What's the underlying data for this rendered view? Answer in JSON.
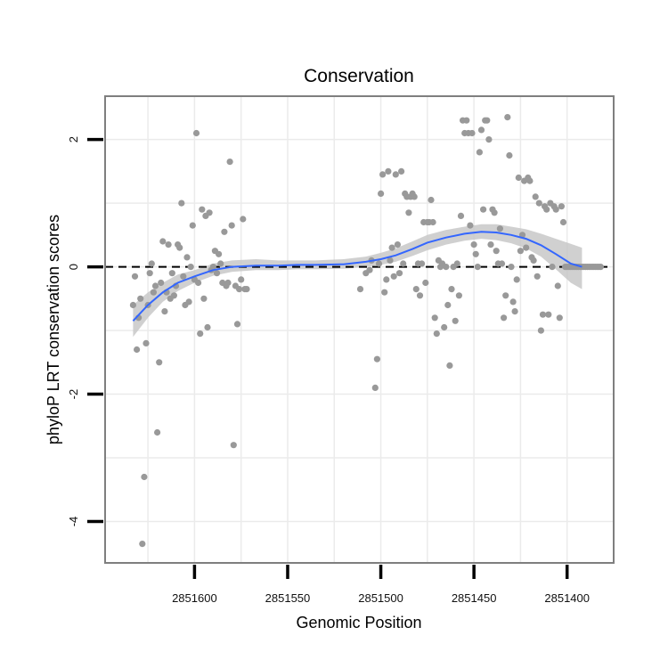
{
  "chart_data": {
    "type": "scatter",
    "title": "Conservation",
    "xlabel": "Genomic Position",
    "ylabel": "phyloP LRT conservation scores",
    "x_reversed": true,
    "xlim": [
      2851375,
      2851648
    ],
    "ylim": [
      -4.65,
      2.68
    ],
    "x_ticks": [
      2851600,
      2851550,
      2851500,
      2851450,
      2851400
    ],
    "x_tick_labels": [
      "2851600",
      "2851550",
      "2851500",
      "2851450",
      "2851400"
    ],
    "y_ticks": [
      2,
      0,
      -2,
      -4
    ],
    "y_tick_labels": [
      "2",
      "0",
      "-2",
      "-4"
    ],
    "reference_line": {
      "y": 0,
      "style": "dashed"
    },
    "grid": true,
    "colors": {
      "points": "#999999",
      "smooth_line": "#3366ff",
      "confidence_band": "#c8c8c8",
      "grid": "#ebebeb",
      "panel_border": "#7f7f7f",
      "reference_line": "#000000"
    },
    "series": [
      {
        "name": "phyloP scores",
        "points": [
          [
            2851633,
            -0.6
          ],
          [
            2851632,
            -0.15
          ],
          [
            2851631,
            -1.3
          ],
          [
            2851630,
            -0.8
          ],
          [
            2851629,
            -0.5
          ],
          [
            2851628,
            -4.35
          ],
          [
            2851627,
            -3.3
          ],
          [
            2851626,
            -1.2
          ],
          [
            2851625,
            -0.6
          ],
          [
            2851624,
            -0.1
          ],
          [
            2851623,
            0.05
          ],
          [
            2851622,
            -0.4
          ],
          [
            2851621,
            -0.3
          ],
          [
            2851620,
            -2.6
          ],
          [
            2851619,
            -1.5
          ],
          [
            2851618,
            -0.25
          ],
          [
            2851617,
            0.4
          ],
          [
            2851616,
            -0.7
          ],
          [
            2851615,
            -0.4
          ],
          [
            2851614,
            0.35
          ],
          [
            2851613,
            -0.5
          ],
          [
            2851612,
            -0.1
          ],
          [
            2851611,
            -0.45
          ],
          [
            2851610,
            -0.3
          ],
          [
            2851609,
            0.35
          ],
          [
            2851608,
            0.3
          ],
          [
            2851607,
            1.0
          ],
          [
            2851606,
            -0.15
          ],
          [
            2851605,
            -0.6
          ],
          [
            2851604,
            0.15
          ],
          [
            2851603,
            -0.55
          ],
          [
            2851602,
            0.0
          ],
          [
            2851601,
            0.65
          ],
          [
            2851600,
            -0.2
          ],
          [
            2851599,
            2.1
          ],
          [
            2851598,
            -0.25
          ],
          [
            2851597,
            -1.05
          ],
          [
            2851596,
            0.9
          ],
          [
            2851595,
            -0.5
          ],
          [
            2851594,
            0.8
          ],
          [
            2851593,
            -0.95
          ],
          [
            2851592,
            0.85
          ],
          [
            2851591,
            -0.05
          ],
          [
            2851590,
            0.0
          ],
          [
            2851589,
            0.25
          ],
          [
            2851588,
            -0.1
          ],
          [
            2851587,
            0.2
          ],
          [
            2851586,
            0.05
          ],
          [
            2851585,
            -0.25
          ],
          [
            2851584,
            0.55
          ],
          [
            2851583,
            -0.3
          ],
          [
            2851582,
            -0.25
          ],
          [
            2851581,
            1.65
          ],
          [
            2851580,
            0.65
          ],
          [
            2851579,
            -2.8
          ],
          [
            2851578,
            -0.3
          ],
          [
            2851577,
            -0.9
          ],
          [
            2851576,
            -0.35
          ],
          [
            2851575,
            -0.2
          ],
          [
            2851574,
            0.75
          ],
          [
            2851573,
            -0.35
          ],
          [
            2851572,
            -0.35
          ],
          [
            2851511,
            -0.35
          ],
          [
            2851508,
            -0.1
          ],
          [
            2851506,
            -0.05
          ],
          [
            2851505,
            0.1
          ],
          [
            2851503,
            -1.9
          ],
          [
            2851502,
            -1.45
          ],
          [
            2851501,
            0.05
          ],
          [
            2851500,
            1.15
          ],
          [
            2851499,
            1.45
          ],
          [
            2851498,
            -0.4
          ],
          [
            2851497,
            -0.2
          ],
          [
            2851496,
            1.5
          ],
          [
            2851495,
            0.1
          ],
          [
            2851494,
            0.3
          ],
          [
            2851493,
            -0.15
          ],
          [
            2851492,
            1.45
          ],
          [
            2851491,
            0.35
          ],
          [
            2851490,
            -0.1
          ],
          [
            2851489,
            1.5
          ],
          [
            2851488,
            0.05
          ],
          [
            2851487,
            1.15
          ],
          [
            2851486,
            1.1
          ],
          [
            2851485,
            0.85
          ],
          [
            2851484,
            1.1
          ],
          [
            2851483,
            1.15
          ],
          [
            2851482,
            1.1
          ],
          [
            2851481,
            -0.35
          ],
          [
            2851480,
            0.05
          ],
          [
            2851479,
            -0.45
          ],
          [
            2851478,
            0.05
          ],
          [
            2851477,
            0.7
          ],
          [
            2851476,
            -0.25
          ],
          [
            2851475,
            0.7
          ],
          [
            2851474,
            0.7
          ],
          [
            2851473,
            1.05
          ],
          [
            2851472,
            0.7
          ],
          [
            2851471,
            -0.8
          ],
          [
            2851470,
            -1.05
          ],
          [
            2851469,
            0.1
          ],
          [
            2851468,
            0.0
          ],
          [
            2851467,
            0.05
          ],
          [
            2851466,
            -0.95
          ],
          [
            2851465,
            0.0
          ],
          [
            2851464,
            -0.6
          ],
          [
            2851463,
            -1.55
          ],
          [
            2851462,
            -0.35
          ],
          [
            2851461,
            0.0
          ],
          [
            2851460,
            -0.85
          ],
          [
            2851459,
            0.05
          ],
          [
            2851458,
            -0.45
          ],
          [
            2851457,
            0.8
          ],
          [
            2851456,
            2.3
          ],
          [
            2851455,
            2.1
          ],
          [
            2851454,
            2.3
          ],
          [
            2851453,
            2.1
          ],
          [
            2851452,
            0.65
          ],
          [
            2851451,
            2.1
          ],
          [
            2851450,
            0.35
          ],
          [
            2851449,
            0.2
          ],
          [
            2851448,
            0.0
          ],
          [
            2851447,
            1.8
          ],
          [
            2851446,
            2.15
          ],
          [
            2851445,
            0.9
          ],
          [
            2851444,
            2.3
          ],
          [
            2851443,
            2.3
          ],
          [
            2851442,
            2.0
          ],
          [
            2851441,
            0.35
          ],
          [
            2851440,
            0.9
          ],
          [
            2851439,
            0.85
          ],
          [
            2851438,
            0.25
          ],
          [
            2851437,
            0.05
          ],
          [
            2851436,
            0.6
          ],
          [
            2851435,
            0.05
          ],
          [
            2851434,
            -0.8
          ],
          [
            2851433,
            -0.45
          ],
          [
            2851432,
            2.35
          ],
          [
            2851431,
            1.75
          ],
          [
            2851430,
            0.0
          ],
          [
            2851429,
            -0.55
          ],
          [
            2851428,
            -0.7
          ],
          [
            2851427,
            -0.2
          ],
          [
            2851426,
            1.4
          ],
          [
            2851425,
            0.25
          ],
          [
            2851424,
            0.5
          ],
          [
            2851423,
            1.35
          ],
          [
            2851422,
            0.3
          ],
          [
            2851421,
            1.4
          ],
          [
            2851420,
            1.35
          ],
          [
            2851419,
            0.15
          ],
          [
            2851418,
            0.1
          ],
          [
            2851417,
            1.1
          ],
          [
            2851416,
            -0.15
          ],
          [
            2851415,
            1.0
          ],
          [
            2851414,
            -1.0
          ],
          [
            2851413,
            -0.75
          ],
          [
            2851412,
            0.95
          ],
          [
            2851411,
            0.9
          ],
          [
            2851410,
            -0.75
          ],
          [
            2851409,
            1.0
          ],
          [
            2851408,
            0.0
          ],
          [
            2851407,
            0.95
          ],
          [
            2851406,
            0.9
          ],
          [
            2851405,
            -0.3
          ],
          [
            2851404,
            -0.8
          ],
          [
            2851403,
            0.95
          ],
          [
            2851402,
            0.7
          ],
          [
            2851401,
            0.0
          ],
          [
            2851400,
            0.0
          ],
          [
            2851399,
            0.0
          ],
          [
            2851398,
            0.0
          ],
          [
            2851397,
            0.0
          ],
          [
            2851396,
            0.0
          ],
          [
            2851395,
            0.0
          ],
          [
            2851394,
            0.0
          ],
          [
            2851393,
            0.0
          ],
          [
            2851392,
            0.0
          ],
          [
            2851391,
            0.0
          ],
          [
            2851390,
            0.0
          ],
          [
            2851389,
            0.0
          ],
          [
            2851388,
            0.0
          ],
          [
            2851387,
            0.0
          ],
          [
            2851386,
            0.0
          ],
          [
            2851385,
            0.0
          ],
          [
            2851384,
            0.0
          ],
          [
            2851383,
            0.0
          ],
          [
            2851382,
            0.0
          ]
        ]
      },
      {
        "name": "loess smooth",
        "type": "line",
        "points": [
          [
            2851633,
            -0.85
          ],
          [
            2851625,
            -0.6
          ],
          [
            2851617,
            -0.4
          ],
          [
            2851609,
            -0.25
          ],
          [
            2851600,
            -0.15
          ],
          [
            2851590,
            -0.05
          ],
          [
            2851580,
            0.0
          ],
          [
            2851567,
            0.02
          ],
          [
            2851555,
            0.02
          ],
          [
            2851545,
            0.03
          ],
          [
            2851535,
            0.03
          ],
          [
            2851520,
            0.04
          ],
          [
            2851508,
            0.08
          ],
          [
            2851500,
            0.12
          ],
          [
            2851492,
            0.18
          ],
          [
            2851483,
            0.28
          ],
          [
            2851475,
            0.38
          ],
          [
            2851465,
            0.46
          ],
          [
            2851455,
            0.52
          ],
          [
            2851446,
            0.55
          ],
          [
            2851438,
            0.54
          ],
          [
            2851430,
            0.5
          ],
          [
            2851422,
            0.44
          ],
          [
            2851414,
            0.34
          ],
          [
            2851406,
            0.2
          ],
          [
            2851398,
            0.05
          ],
          [
            2851392,
            0.0
          ]
        ]
      },
      {
        "name": "95% confidence band",
        "type": "area",
        "points": [
          [
            2851633,
            -1.1,
            -0.6
          ],
          [
            2851625,
            -0.8,
            -0.4
          ],
          [
            2851617,
            -0.55,
            -0.25
          ],
          [
            2851609,
            -0.38,
            -0.12
          ],
          [
            2851600,
            -0.25,
            -0.05
          ],
          [
            2851590,
            -0.14,
            0.05
          ],
          [
            2851580,
            -0.08,
            0.1
          ],
          [
            2851567,
            -0.05,
            0.12
          ],
          [
            2851555,
            -0.05,
            0.1
          ],
          [
            2851545,
            -0.04,
            0.1
          ],
          [
            2851535,
            -0.04,
            0.1
          ],
          [
            2851520,
            -0.03,
            0.12
          ],
          [
            2851508,
            0.0,
            0.16
          ],
          [
            2851500,
            0.03,
            0.22
          ],
          [
            2851492,
            0.08,
            0.29
          ],
          [
            2851483,
            0.17,
            0.4
          ],
          [
            2851475,
            0.26,
            0.5
          ],
          [
            2851465,
            0.35,
            0.58
          ],
          [
            2851455,
            0.41,
            0.63
          ],
          [
            2851446,
            0.44,
            0.67
          ],
          [
            2851438,
            0.42,
            0.67
          ],
          [
            2851430,
            0.37,
            0.63
          ],
          [
            2851422,
            0.29,
            0.59
          ],
          [
            2851414,
            0.16,
            0.52
          ],
          [
            2851406,
            -0.04,
            0.44
          ],
          [
            2851398,
            -0.25,
            0.36
          ],
          [
            2851392,
            -0.35,
            0.3
          ]
        ]
      }
    ]
  }
}
